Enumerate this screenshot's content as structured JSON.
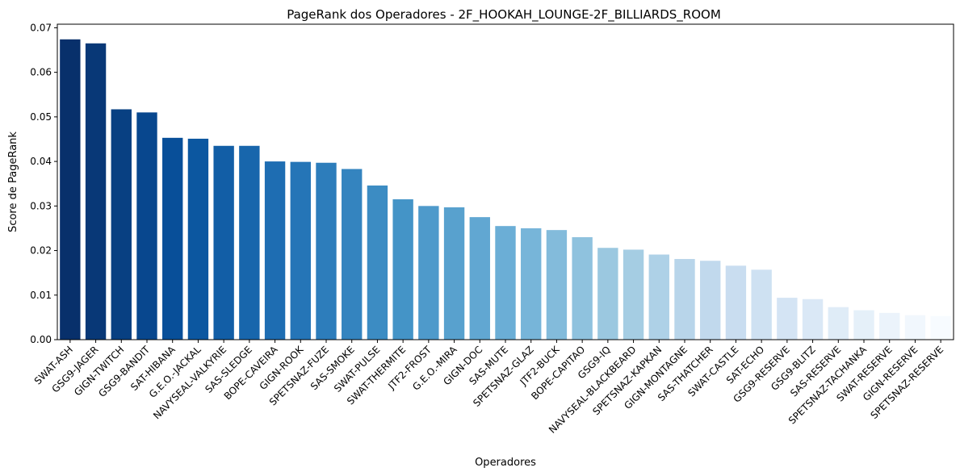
{
  "chart_data": {
    "type": "bar",
    "title": "PageRank dos Operadores - 2F_HOOKAH_LOUNGE-2F_BILLIARDS_ROOM",
    "xlabel": "Operadores",
    "ylabel": "Score de PageRank",
    "ylim": [
      0,
      0.0708
    ],
    "yticks": [
      "0.00",
      "0.01",
      "0.02",
      "0.03",
      "0.04",
      "0.05",
      "0.06",
      "0.07"
    ],
    "grid": false,
    "categories": [
      "SWAT-ASH",
      "GSG9-JAGER",
      "GIGN-TWITCH",
      "GSG9-BANDIT",
      "SAT-HIBANA",
      "G.E.O.-JACKAL",
      "NAVYSEAL-VALKYRIE",
      "SAS-SLEDGE",
      "BOPE-CAVEIRA",
      "GIGN-ROOK",
      "SPETSNAZ-FUZE",
      "SAS-SMOKE",
      "SWAT-PULSE",
      "SWAT-THERMITE",
      "JTF2-FROST",
      "G.E.O.-MIRA",
      "GIGN-DOC",
      "SAS-MUTE",
      "SPETSNAZ-GLAZ",
      "JTF2-BUCK",
      "BOPE-CAPITAO",
      "GSG9-IQ",
      "NAVYSEAL-BLACKBEARD",
      "SPETSNAZ-KAPKAN",
      "GIGN-MONTAGNE",
      "SAS-THATCHER",
      "SWAT-CASTLE",
      "SAT-ECHO",
      "GSG9-RESERVE",
      "GSG9-BLITZ",
      "SAS-RESERVE",
      "SPETSNAZ-TACHANKA",
      "SWAT-RESERVE",
      "GIGN-RESERVE",
      "SPETSNAZ-RESERVE"
    ],
    "values": [
      0.0674,
      0.0665,
      0.0517,
      0.051,
      0.0453,
      0.0451,
      0.0435,
      0.0435,
      0.04,
      0.0399,
      0.0397,
      0.0383,
      0.0346,
      0.0315,
      0.03,
      0.0297,
      0.0275,
      0.0255,
      0.025,
      0.0246,
      0.023,
      0.0206,
      0.0202,
      0.0191,
      0.0181,
      0.0177,
      0.0166,
      0.0157,
      0.0094,
      0.0091,
      0.0073,
      0.0066,
      0.006,
      0.0055,
      0.0053
    ],
    "colormap": "Blues_r",
    "colors": {
      "bar_dark": "#08306b",
      "bar_light": "#f7fbff"
    }
  }
}
